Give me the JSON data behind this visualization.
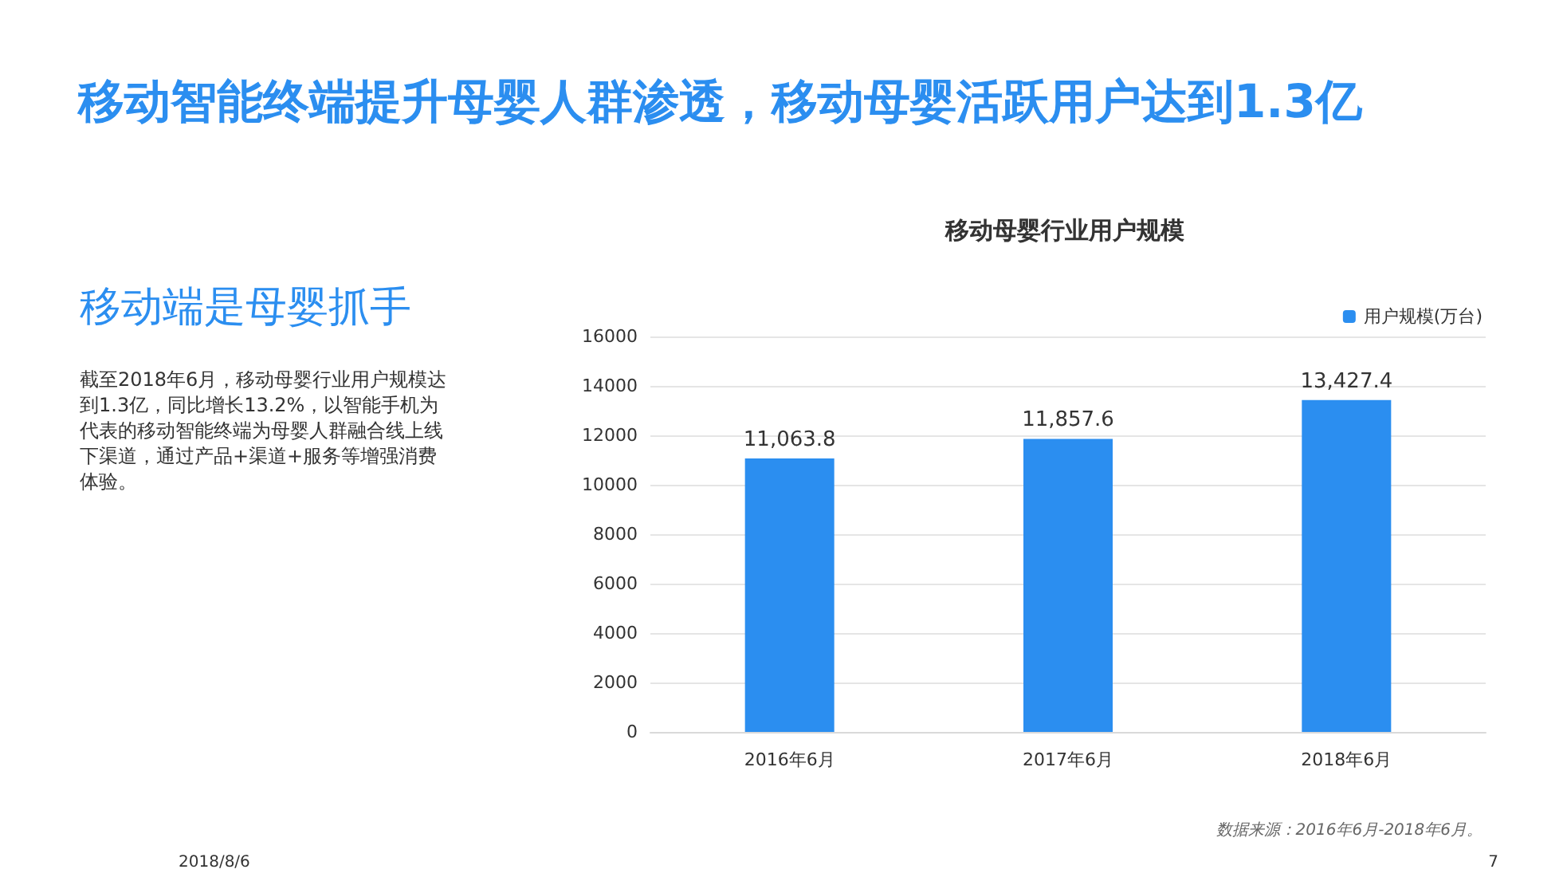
{
  "chart_data": {
    "type": "bar",
    "title": "移动母婴行业用户规模",
    "subtitle": "移动智能终端提升母婴人群渗透，移动母婴活跃用户达到1.3亿",
    "categories": [
      "2016年6月",
      "2017年6月",
      "2018年6月"
    ],
    "series": [
      {
        "name": "用户规模(万台)",
        "color": "#2b8ef0",
        "values": [
          11063.8,
          11857.6,
          13427.4
        ],
        "value_labels": [
          "11,063.8",
          "11,857.6",
          "13,427.4"
        ]
      }
    ],
    "ylim": [
      0,
      16000
    ],
    "yticks": [
      0,
      2000,
      4000,
      6000,
      8000,
      10000,
      12000,
      14000,
      16000
    ],
    "grid": "y",
    "legend": "top right",
    "annotations": [
      "移动端是母婴抓手",
      "截至2018年6月，移动母婴行业用户规模达到1.3亿，同比增长13.2%，以智能手机为代表的移动智能终端为母婴人群融合线上线下渠道，通过产品+渠道+服务等增强消费体验。",
      "数据来源：2016年6月-2018年6月。",
      "2018/8/6",
      "7"
    ]
  }
}
